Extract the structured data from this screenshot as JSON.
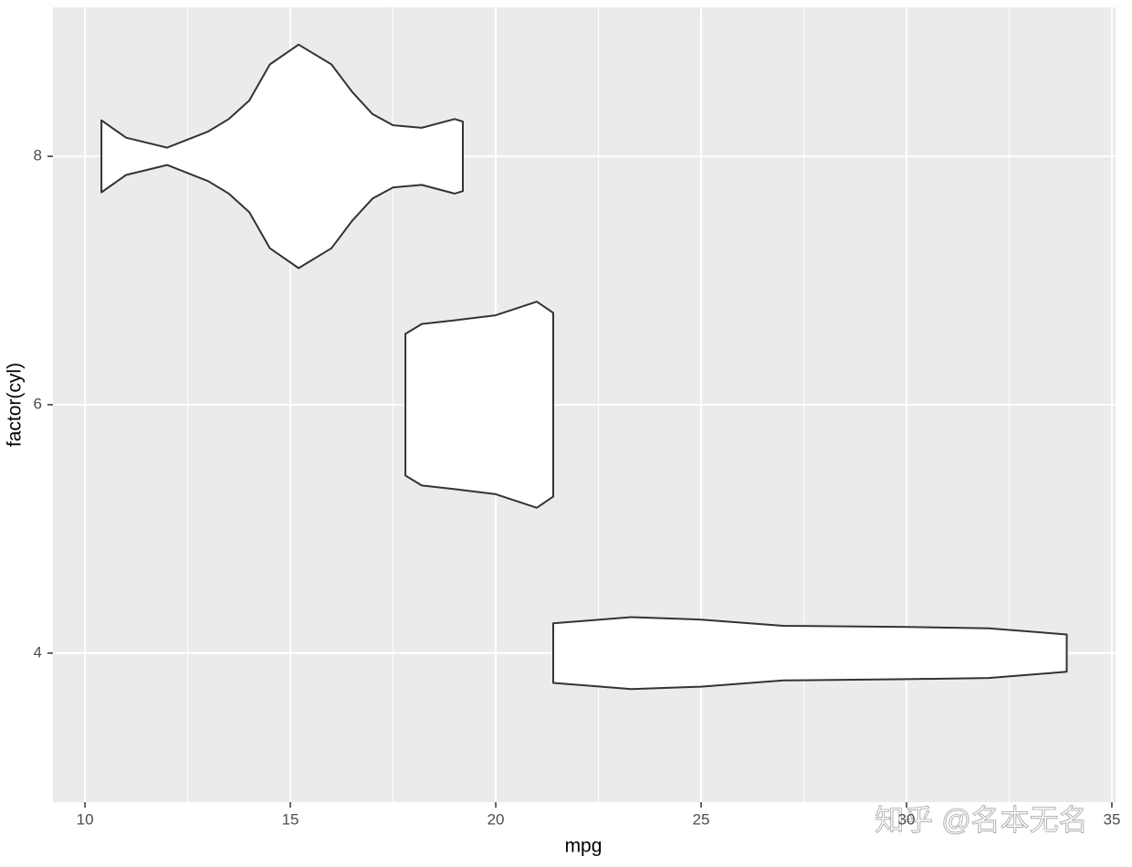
{
  "chart_data": {
    "type": "violin",
    "x_label": "mpg",
    "y_label": "factor(cyl)",
    "xlim": [
      9.22,
      35.09
    ],
    "ylim": [
      2.8,
      9.2
    ],
    "xticks": [
      10,
      15,
      20,
      25,
      30,
      35
    ],
    "xminorticks": [
      12.5,
      17.5,
      22.5,
      27.5,
      32.5
    ],
    "yticks": [
      4,
      6,
      8
    ],
    "grid": true,
    "color": "#ffffff",
    "edge_color": "#333333",
    "violins": [
      {
        "y": 8,
        "x": [
          10.4,
          11,
          12,
          13,
          13.5,
          14,
          14.5,
          15.2,
          16,
          16.5,
          17,
          17.5,
          18.2,
          19,
          19.2
        ],
        "width": [
          0.29,
          0.15,
          0.07,
          0.2,
          0.3,
          0.45,
          0.74,
          0.9,
          0.74,
          0.52,
          0.34,
          0.25,
          0.23,
          0.3,
          0.28
        ]
      },
      {
        "y": 6,
        "x": [
          17.8,
          18.2,
          19,
          20,
          21,
          21.4
        ],
        "width": [
          0.57,
          0.65,
          0.68,
          0.72,
          0.83,
          0.74
        ]
      },
      {
        "y": 4,
        "x": [
          21.4,
          23.3,
          25,
          27,
          30,
          32,
          33.9
        ],
        "width": [
          0.24,
          0.29,
          0.27,
          0.22,
          0.21,
          0.2,
          0.15
        ]
      }
    ],
    "watermark": "知乎 @名本无名"
  }
}
